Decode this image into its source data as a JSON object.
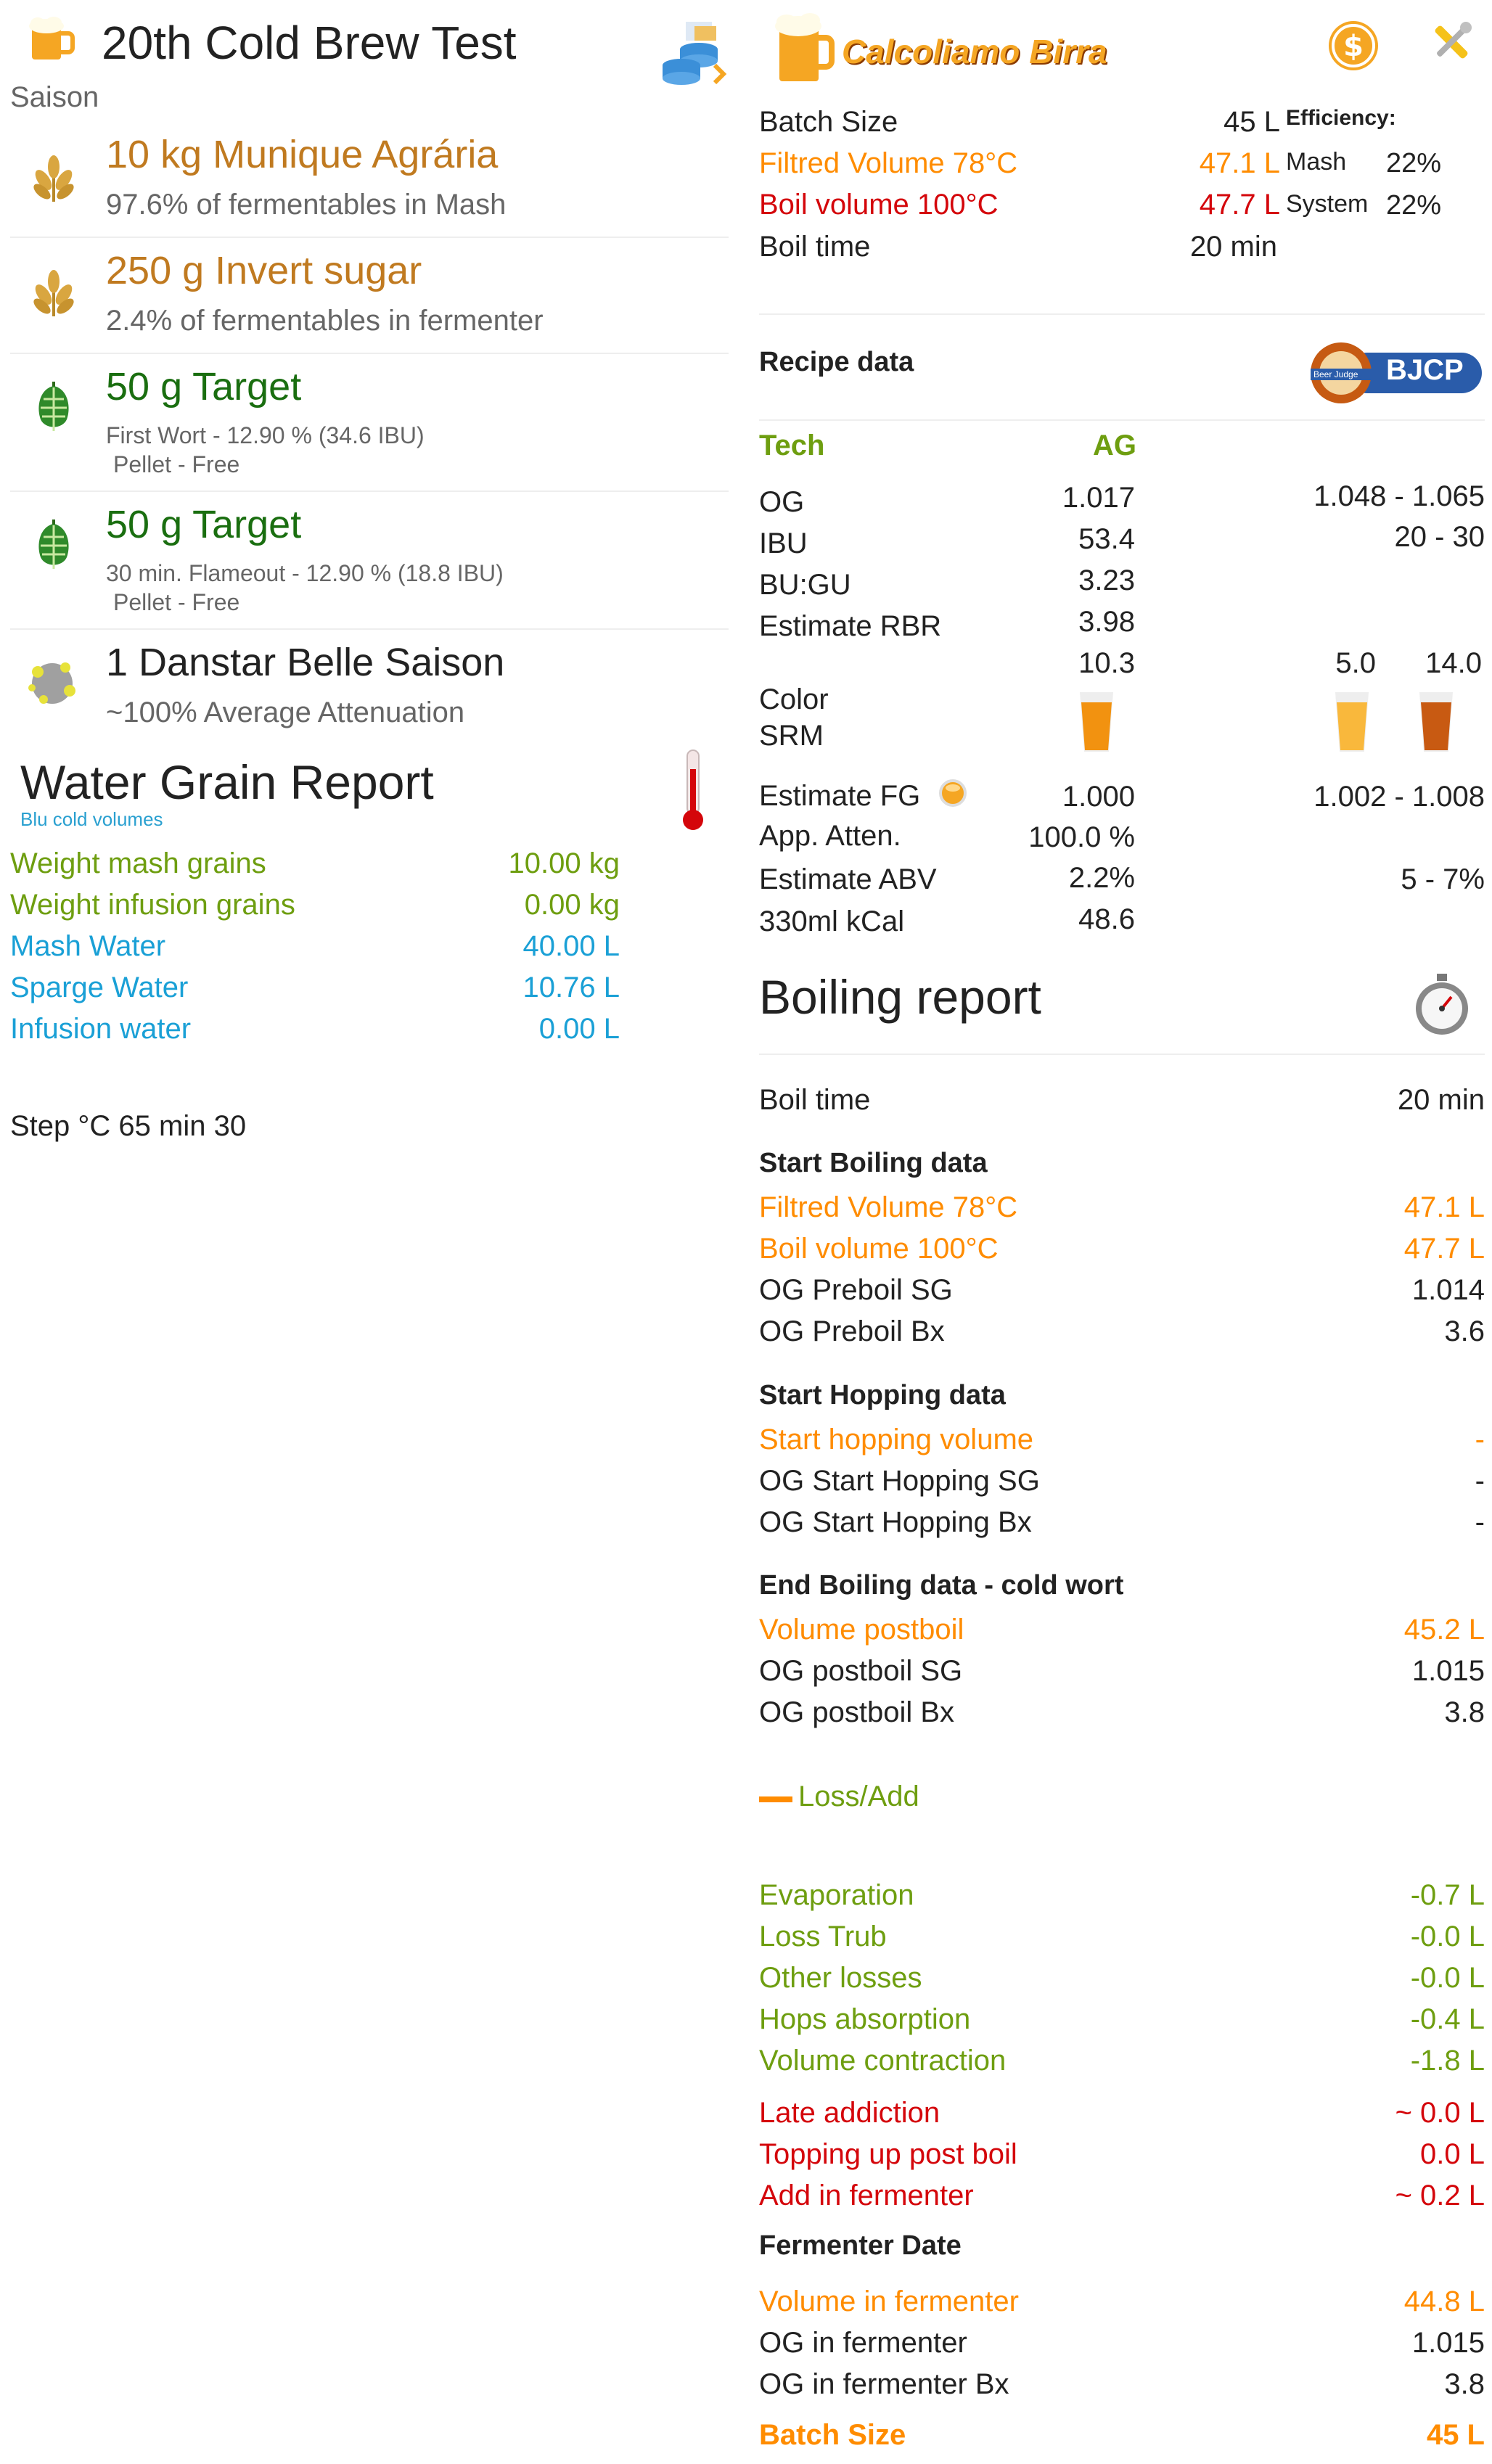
{
  "header": {
    "title": "20th Cold Brew Test",
    "style": "Saison",
    "logo_text": "Calcoliamo Birra"
  },
  "ingredients": [
    {
      "icon": "grain-icon",
      "main": "10 kg Munique Agrária",
      "sub": "97.6% of fermentables in Mash",
      "color": "#c07a20"
    },
    {
      "icon": "grain-icon",
      "main": "250 g Invert sugar",
      "sub": "2.4% of fermentables in fermenter",
      "color": "#c07a20"
    },
    {
      "icon": "hop-icon",
      "main": "50 g Target",
      "sub": "First Wort - 12.90 %  (34.6 IBU)",
      "sub2": "Pellet - Free",
      "color": "#1a6e10"
    },
    {
      "icon": "hop-icon",
      "main": "50 g Target",
      "sub": "30 min. Flameout - 12.90 %  (18.8 IBU)",
      "sub2": "Pellet - Free",
      "color": "#1a6e10"
    },
    {
      "icon": "yeast-icon",
      "main": "1 Danstar Belle Saison",
      "sub": "~100% Average Attenuation",
      "color": "#222222"
    }
  ],
  "water_grain": {
    "title": "Water Grain Report",
    "note": "Blu cold volumes",
    "rows": [
      {
        "label": "Weight mash grains",
        "value": "10.00 kg"
      },
      {
        "label": "Weight infusion grains",
        "value": "0.00 kg"
      },
      {
        "label": "Mash Water",
        "value": "40.00 L"
      },
      {
        "label": "Sparge Water",
        "value": "10.76 L"
      },
      {
        "label": "Infusion water",
        "value": "0.00 L"
      }
    ],
    "step": "Step °C 65 min 30"
  },
  "batch": {
    "rows": [
      {
        "label": "Batch Size",
        "value": "45 L"
      },
      {
        "label": "Filtred Volume 78°C",
        "value": "47.1 L"
      },
      {
        "label": "Boil volume 100°C",
        "value": "47.7 L"
      },
      {
        "label": "Boil time",
        "value": "20 min"
      }
    ],
    "efficiency_title": "Efficiency:",
    "mash_label": "Mash",
    "mash_value": "22%",
    "system_label": "System",
    "system_value": "22%"
  },
  "recipe": {
    "title": "Recipe data",
    "bjcp": "BJCP",
    "bjcp_small": "Beer Judge",
    "tech": "Tech",
    "ag": "AG",
    "rows": [
      {
        "label": "OG",
        "value": "1.017",
        "range": "1.048 - 1.065"
      },
      {
        "label": "IBU",
        "value": "53.4",
        "range": "20 - 30"
      },
      {
        "label": "BU:GU",
        "value": "3.23",
        "range": ""
      },
      {
        "label": "Estimate RBR",
        "value": "3.98",
        "range": ""
      }
    ],
    "color_value": "10.3",
    "color_min": "5.0",
    "color_max": "14.0",
    "color_label": "Color",
    "srm_label": "SRM",
    "rows2": [
      {
        "label": "Estimate FG",
        "value": "1.000",
        "range": "1.002 - 1.008"
      },
      {
        "label": "App. Atten.",
        "value": "100.0 %",
        "range": ""
      },
      {
        "label": "Estimate ABV",
        "value": "2.2%",
        "range": "5 - 7%"
      },
      {
        "label": "330ml kCal",
        "value": "48.6",
        "range": ""
      }
    ]
  },
  "boiling": {
    "title": "Boiling report",
    "boil_time_label": "Boil time",
    "boil_time_value": "20 min",
    "start_title": "Start Boiling data",
    "start_rows": [
      {
        "label": "Filtred Volume 78°C",
        "value": "47.1 L"
      },
      {
        "label": "Boil volume 100°C",
        "value": "47.7 L"
      },
      {
        "label": "OG Preboil SG",
        "value": "1.014"
      },
      {
        "label": "OG Preboil Bx",
        "value": "3.6"
      }
    ],
    "hop_title": "Start Hopping data",
    "hop_rows": [
      {
        "label": "Start hopping volume",
        "value": "-"
      },
      {
        "label": "OG Start Hopping SG",
        "value": "-"
      },
      {
        "label": "OG Start Hopping Bx",
        "value": "-"
      }
    ],
    "end_title": "End Boiling data - cold wort",
    "end_rows": [
      {
        "label": "Volume postboil",
        "value": "45.2 L"
      },
      {
        "label": "OG postboil SG",
        "value": "1.015"
      },
      {
        "label": "OG postboil Bx",
        "value": "3.8"
      }
    ],
    "loss_label": "Loss/Add",
    "loss_rows": [
      {
        "label": "Evaporation",
        "value": "-0.7 L"
      },
      {
        "label": "Loss Trub",
        "value": "-0.0 L"
      },
      {
        "label": "Other losses",
        "value": "-0.0 L"
      },
      {
        "label": "Hops absorption",
        "value": "-0.4 L"
      },
      {
        "label": "Volume contraction",
        "value": "-1.8 L"
      }
    ],
    "add_rows": [
      {
        "label": "Late addiction",
        "value": "~ 0.0 L"
      },
      {
        "label": "Topping up post boil",
        "value": "0.0 L"
      },
      {
        "label": "Add in fermenter",
        "value": "~ 0.2 L"
      }
    ],
    "ferm_title": "Fermenter Date",
    "ferm_rows": [
      {
        "label": "Volume in fermenter",
        "value": "44.8 L"
      },
      {
        "label": "OG in fermenter",
        "value": "1.015"
      },
      {
        "label": "OG in fermenter Bx",
        "value": "3.8"
      }
    ],
    "batch_label": "Batch Size",
    "batch_value": "45 L"
  },
  "colors": {
    "green": "#6e9e10",
    "blue": "#1aa0d6",
    "orange": "#ff8c00",
    "red": "#d4060b",
    "brown": "#c07a20",
    "hop_green": "#1a6e10"
  }
}
